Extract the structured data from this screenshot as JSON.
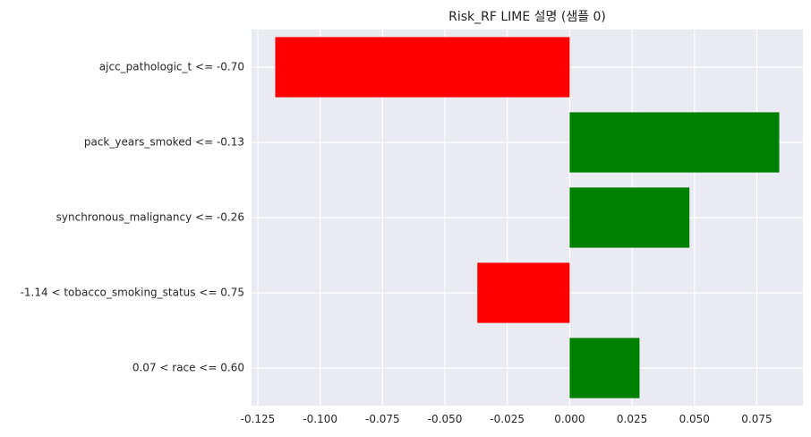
{
  "chart_data": {
    "type": "bar",
    "orientation": "horizontal",
    "title": "Risk_RF LIME 설명 (샘플 0)",
    "xlabel": "",
    "ylabel": "",
    "categories": [
      "ajcc_pathologic_t <= -0.70",
      "pack_years_smoked <= -0.13",
      "synchronous_malignancy <= -0.26",
      "-1.14 < tobacco_smoking_status <= 0.75",
      "0.07 < race <= 0.60"
    ],
    "values": [
      -0.118,
      0.084,
      0.048,
      -0.037,
      0.028
    ],
    "xlim": [
      -0.1275,
      0.0935
    ],
    "xticks": [
      -0.125,
      -0.1,
      -0.075,
      -0.05,
      -0.025,
      0.0,
      0.025,
      0.05,
      0.075
    ],
    "xtick_labels": [
      "-0.125",
      "-0.100",
      "-0.075",
      "-0.050",
      "-0.025",
      "0.000",
      "0.025",
      "0.050",
      "0.075"
    ],
    "grid": true,
    "colors": {
      "positive": "#008000",
      "negative": "#ff0000",
      "background": "#eaeaf2",
      "grid": "#ffffff"
    }
  }
}
